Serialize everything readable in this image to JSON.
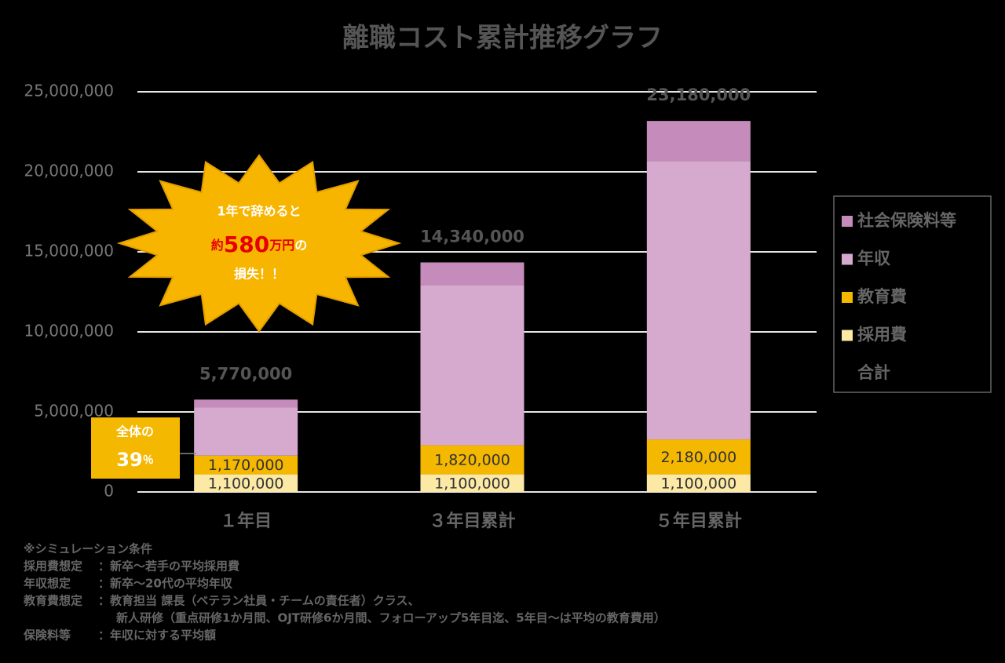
{
  "chart_data": {
    "type": "stacked_bar",
    "title": "離職コスト累計推移グラフ",
    "categories": [
      "１年目",
      "３年目累計",
      "５年目累計"
    ],
    "series": [
      {
        "name": "採用費",
        "color": "#fce9a6",
        "values": [
          1100000,
          1100000,
          1100000
        ],
        "value_labels": [
          "1,100,000",
          "1,100,000",
          "1,100,000"
        ]
      },
      {
        "name": "教育費",
        "color": "#f5b800",
        "values": [
          1170000,
          1820000,
          2180000
        ],
        "value_labels": [
          "1,170,000",
          "1,820,000",
          "2,180,000"
        ]
      },
      {
        "name": "年収",
        "color": "#d6a9cf",
        "values": [
          3000000,
          10000000,
          17400000
        ]
      },
      {
        "name": "社会保険料等",
        "color": "#c48bbb",
        "values": [
          500000,
          1420000,
          2500000
        ]
      }
    ],
    "totals": {
      "name": "合計",
      "values": [
        5770000,
        14340000,
        23180000
      ],
      "value_labels": [
        "5,770,000",
        "14,340,000",
        "23,180,000"
      ]
    },
    "ylim": [
      0,
      25000000
    ],
    "yticks": [
      0,
      {
        "value": 5000000,
        "label": "5,000,000"
      },
      {
        "value": 10000000,
        "label": "10,000,000"
      },
      {
        "value": 15000000,
        "label": "15,000,000"
      },
      {
        "value": 20000000,
        "label": "20,000,000"
      },
      {
        "value": 25000000,
        "label": "25,000,000"
      }
    ],
    "grid": true,
    "legend": "right"
  },
  "callout_burst": {
    "line1": "1年で辞めると",
    "prefix": "約",
    "amount": "580",
    "unit": "万円",
    "suffix": "の",
    "line3": "損失！！"
  },
  "callout_share": {
    "line1": "全体の",
    "amount": "39",
    "unit": "％"
  },
  "notes": {
    "heading": "※シミュレーション条件",
    "rows": [
      {
        "label": "採用費想定",
        "text": "：新卒～若手の平均採用費"
      },
      {
        "label": "年収想定",
        "text": "：新卒～20代の平均年収"
      },
      {
        "label": "教育費想定",
        "text": "：教育担当 課長（ベテラン社員・チームの責任者）クラス、"
      },
      {
        "text": "新人研修（重点研修1か月間、OJT研修6か月間、フォローアップ5年目迄、5年目～は平均の教育費用）"
      },
      {
        "label": "保険料等",
        "text": "：年収に対する平均額"
      }
    ]
  }
}
